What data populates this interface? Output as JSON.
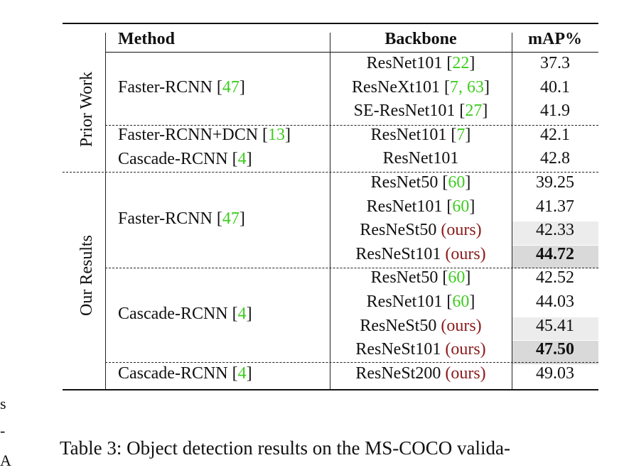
{
  "table": {
    "headers": {
      "method": "Method",
      "backbone": "Backbone",
      "map": "mAP%"
    },
    "groups": {
      "prior": "Prior Work",
      "ours": "Our Results"
    },
    "methods": {
      "m1": {
        "name": "Faster-RCNN [",
        "cite": "47",
        "close": "]"
      },
      "m2": {
        "name": "Faster-RCNN+DCN [",
        "cite": "13",
        "close": "]"
      },
      "m3": {
        "name": "Cascade-RCNN [",
        "cite": "4",
        "close": "]"
      },
      "m4": {
        "name": "Faster-RCNN [",
        "cite": "47",
        "close": "]"
      },
      "m5": {
        "name": "Cascade-RCNN [",
        "cite": "4",
        "close": "]"
      },
      "m6": {
        "name": "Cascade-RCNN [",
        "cite": "4",
        "close": "]"
      }
    },
    "rows": [
      {
        "backbone": "ResNet101 [",
        "cite": "22",
        "close": "]",
        "ours": "",
        "map": "37.3",
        "bold": false,
        "shade": ""
      },
      {
        "backbone": "ResNeXt101 [",
        "cite": "7, 63",
        "close": "]",
        "ours": "",
        "map": "40.1",
        "bold": false,
        "shade": ""
      },
      {
        "backbone": "SE-ResNet101 [",
        "cite": "27",
        "close": "]",
        "ours": "",
        "map": "41.9",
        "bold": false,
        "shade": ""
      },
      {
        "backbone": "ResNet101 [",
        "cite": "7",
        "close": "]",
        "ours": "",
        "map": "42.1",
        "bold": false,
        "shade": ""
      },
      {
        "backbone": "ResNet101",
        "cite": "",
        "close": "",
        "ours": "",
        "map": "42.8",
        "bold": false,
        "shade": ""
      },
      {
        "backbone": "ResNet50 [",
        "cite": "60",
        "close": "]",
        "ours": "",
        "map": "39.25",
        "bold": false,
        "shade": ""
      },
      {
        "backbone": "ResNet101 [",
        "cite": "60",
        "close": "]",
        "ours": "",
        "map": "41.37",
        "bold": false,
        "shade": ""
      },
      {
        "backbone": "ResNeSt50 ",
        "cite": "",
        "close": "",
        "ours": "(ours)",
        "map": "42.33",
        "bold": false,
        "shade": "#ececec"
      },
      {
        "backbone": "ResNeSt101 ",
        "cite": "",
        "close": "",
        "ours": "(ours)",
        "map": "44.72",
        "bold": true,
        "shade": "#d9d9d9"
      },
      {
        "backbone": "ResNet50 [",
        "cite": "60",
        "close": "]",
        "ours": "",
        "map": "42.52",
        "bold": false,
        "shade": ""
      },
      {
        "backbone": "ResNet101 [",
        "cite": "60",
        "close": "]",
        "ours": "",
        "map": "44.03",
        "bold": false,
        "shade": ""
      },
      {
        "backbone": "ResNeSt50 ",
        "cite": "",
        "close": "",
        "ours": "(ours)",
        "map": "45.41",
        "bold": false,
        "shade": "#ececec"
      },
      {
        "backbone": "ResNeSt101 ",
        "cite": "",
        "close": "",
        "ours": "(ours)",
        "map": "47.50",
        "bold": true,
        "shade": "#d9d9d9"
      },
      {
        "backbone": "ResNeSt200 ",
        "cite": "",
        "close": "",
        "ours": "(ours)",
        "map": "49.03",
        "bold": false,
        "shade": ""
      }
    ]
  },
  "caption": "Table 3: Object detection results on the MS-COCO valida-",
  "margin": {
    "frag1": "s",
    "frag2": "-",
    "frag3": "A"
  }
}
